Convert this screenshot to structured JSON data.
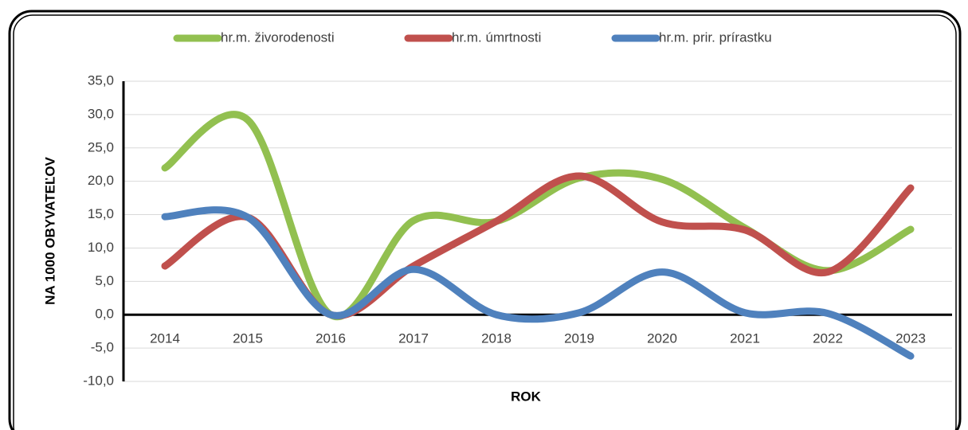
{
  "chart_data": {
    "type": "line",
    "categories": [
      "2014",
      "2015",
      "2016",
      "2017",
      "2018",
      "2019",
      "2020",
      "2021",
      "2022",
      "2023"
    ],
    "series": [
      {
        "name": "hr.m. živorodenosti",
        "color": "#92c050",
        "values": [
          22.0,
          29.2,
          0,
          14.1,
          14.0,
          20.5,
          20.3,
          13.0,
          6.6,
          12.8
        ]
      },
      {
        "name": "hr.m. úmrtnosti",
        "color": "#c0504d",
        "values": [
          7.3,
          14.6,
          0,
          7.3,
          14.0,
          20.8,
          13.9,
          12.7,
          6.4,
          19.0
        ]
      },
      {
        "name": "hr.m. prir. prírastku",
        "color": "#4f81bd",
        "values": [
          14.7,
          14.6,
          0,
          6.8,
          0,
          0.3,
          6.4,
          0.3,
          0.2,
          -6.2
        ]
      }
    ],
    "ylim": [
      -10,
      35
    ],
    "yticks": [
      {
        "value": -10,
        "label": "-10,0"
      },
      {
        "value": -5,
        "label": "-5,0"
      },
      {
        "value": 0,
        "label": "0,0"
      },
      {
        "value": 5,
        "label": "5,0"
      },
      {
        "value": 10,
        "label": "10,0"
      },
      {
        "value": 15,
        "label": "15,0"
      },
      {
        "value": 20,
        "label": "20,0"
      },
      {
        "value": 25,
        "label": "25,0"
      },
      {
        "value": 30,
        "label": "30,0"
      },
      {
        "value": 35,
        "label": "35,0"
      }
    ],
    "xlabel": "ROK",
    "ylabel": "NA 1000 OBYVATEĽOV",
    "grid": true,
    "legend": "top"
  }
}
